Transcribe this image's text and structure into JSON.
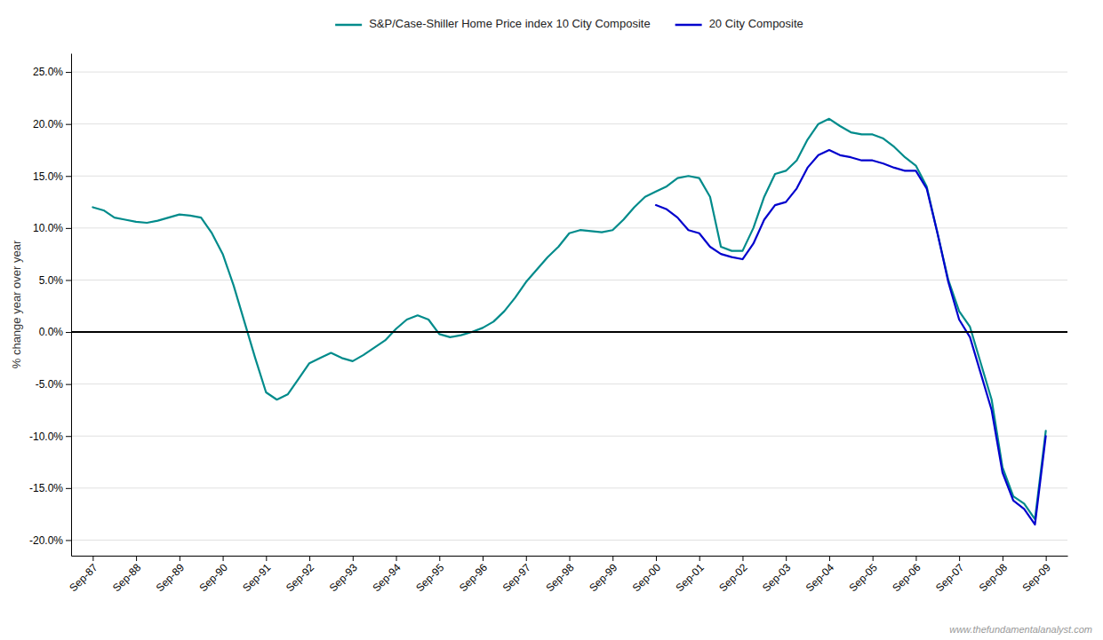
{
  "chart_data": {
    "type": "line",
    "y_label": "% change year over year",
    "annotations": [
      "www.thefundamentalanalyst.com"
    ],
    "legend": "top",
    "grid": true,
    "xlim": [
      -0.5,
      22.5
    ],
    "xticks": [
      {
        "value": 0,
        "label": "Sep-87"
      },
      {
        "value": 1,
        "label": "Sep-88"
      },
      {
        "value": 2,
        "label": "Sep-89"
      },
      {
        "value": 3,
        "label": "Sep-90"
      },
      {
        "value": 4,
        "label": "Sep-91"
      },
      {
        "value": 5,
        "label": "Sep-92"
      },
      {
        "value": 6,
        "label": "Sep-93"
      },
      {
        "value": 7,
        "label": "Sep-94"
      },
      {
        "value": 8,
        "label": "Sep-95"
      },
      {
        "value": 9,
        "label": "Sep-96"
      },
      {
        "value": 10,
        "label": "Sep-97"
      },
      {
        "value": 11,
        "label": "Sep-98"
      },
      {
        "value": 12,
        "label": "Sep-99"
      },
      {
        "value": 13,
        "label": "Sep-00"
      },
      {
        "value": 14,
        "label": "Sep-01"
      },
      {
        "value": 15,
        "label": "Sep-02"
      },
      {
        "value": 16,
        "label": "Sep-03"
      },
      {
        "value": 17,
        "label": "Sep-04"
      },
      {
        "value": 18,
        "label": "Sep-05"
      },
      {
        "value": 19,
        "label": "Sep-06"
      },
      {
        "value": 20,
        "label": "Sep-07"
      },
      {
        "value": 21,
        "label": "Sep-08"
      },
      {
        "value": 22,
        "label": "Sep-09"
      }
    ],
    "ylim": [
      -0.215,
      0.268
    ],
    "yticks": [
      {
        "value": -0.2,
        "label": "-20.0%"
      },
      {
        "value": -0.15,
        "label": "-15.0%"
      },
      {
        "value": -0.1,
        "label": "-10.0%"
      },
      {
        "value": -0.05,
        "label": "-5.0%"
      },
      {
        "value": 0.0,
        "label": "0.0%"
      },
      {
        "value": 0.05,
        "label": "5.0%"
      },
      {
        "value": 0.1,
        "label": "10.0%"
      },
      {
        "value": 0.15,
        "label": "15.0%"
      },
      {
        "value": 0.2,
        "label": "20.0%"
      },
      {
        "value": 0.25,
        "label": "25.0%"
      }
    ],
    "hlines": [
      0
    ],
    "series": [
      {
        "name": "S&P/Case-Shiller Home Price index 10 City Composite",
        "color": "#008B8B",
        "x": [
          0.0,
          0.25,
          0.5,
          0.75,
          1.0,
          1.25,
          1.5,
          1.75,
          2.0,
          2.25,
          2.5,
          2.75,
          3.0,
          3.25,
          3.5,
          3.75,
          4.0,
          4.25,
          4.5,
          4.75,
          5.0,
          5.25,
          5.5,
          5.75,
          6.0,
          6.25,
          6.5,
          6.75,
          7.0,
          7.25,
          7.5,
          7.75,
          8.0,
          8.25,
          8.5,
          8.75,
          9.0,
          9.25,
          9.5,
          9.75,
          10.0,
          10.25,
          10.5,
          10.75,
          11.0,
          11.25,
          11.5,
          11.75,
          12.0,
          12.25,
          12.5,
          12.75,
          13.0,
          13.25,
          13.5,
          13.75,
          14.0,
          14.25,
          14.5,
          14.75,
          15.0,
          15.25,
          15.5,
          15.75,
          16.0,
          16.25,
          16.5,
          16.75,
          17.0,
          17.25,
          17.5,
          17.75,
          18.0,
          18.25,
          18.5,
          18.75,
          19.0,
          19.25,
          19.5,
          19.75,
          20.0,
          20.25,
          20.5,
          20.75,
          21.0,
          21.25,
          21.5,
          21.75,
          22.0
        ],
        "values": [
          0.12,
          0.117,
          0.11,
          0.108,
          0.106,
          0.105,
          0.107,
          0.11,
          0.113,
          0.112,
          0.11,
          0.095,
          0.075,
          0.045,
          0.01,
          -0.025,
          -0.058,
          -0.065,
          -0.06,
          -0.045,
          -0.03,
          -0.025,
          -0.02,
          -0.025,
          -0.028,
          -0.022,
          -0.015,
          -0.008,
          0.003,
          0.012,
          0.016,
          0.012,
          -0.002,
          -0.005,
          -0.003,
          0.0,
          0.004,
          0.01,
          0.02,
          0.033,
          0.048,
          0.06,
          0.072,
          0.082,
          0.095,
          0.098,
          0.097,
          0.096,
          0.098,
          0.108,
          0.12,
          0.13,
          0.135,
          0.14,
          0.148,
          0.15,
          0.148,
          0.13,
          0.082,
          0.078,
          0.078,
          0.1,
          0.13,
          0.152,
          0.155,
          0.165,
          0.185,
          0.2,
          0.205,
          0.198,
          0.192,
          0.19,
          0.19,
          0.186,
          0.178,
          0.168,
          0.16,
          0.14,
          0.095,
          0.05,
          0.02,
          0.005,
          -0.03,
          -0.065,
          -0.13,
          -0.158,
          -0.165,
          -0.18,
          -0.095
        ]
      },
      {
        "name": "20 City Composite",
        "color": "#0000CD",
        "x": [
          13.0,
          13.25,
          13.5,
          13.75,
          14.0,
          14.25,
          14.5,
          14.75,
          15.0,
          15.25,
          15.5,
          15.75,
          16.0,
          16.25,
          16.5,
          16.75,
          17.0,
          17.25,
          17.5,
          17.75,
          18.0,
          18.25,
          18.5,
          18.75,
          19.0,
          19.25,
          19.5,
          19.75,
          20.0,
          20.25,
          20.5,
          20.75,
          21.0,
          21.25,
          21.5,
          21.75,
          22.0
        ],
        "values": [
          0.122,
          0.118,
          0.11,
          0.098,
          0.095,
          0.082,
          0.075,
          0.072,
          0.07,
          0.085,
          0.108,
          0.122,
          0.125,
          0.138,
          0.158,
          0.17,
          0.175,
          0.17,
          0.168,
          0.165,
          0.165,
          0.162,
          0.158,
          0.155,
          0.155,
          0.138,
          0.095,
          0.048,
          0.012,
          -0.005,
          -0.04,
          -0.075,
          -0.135,
          -0.162,
          -0.17,
          -0.185,
          -0.1
        ]
      }
    ]
  }
}
